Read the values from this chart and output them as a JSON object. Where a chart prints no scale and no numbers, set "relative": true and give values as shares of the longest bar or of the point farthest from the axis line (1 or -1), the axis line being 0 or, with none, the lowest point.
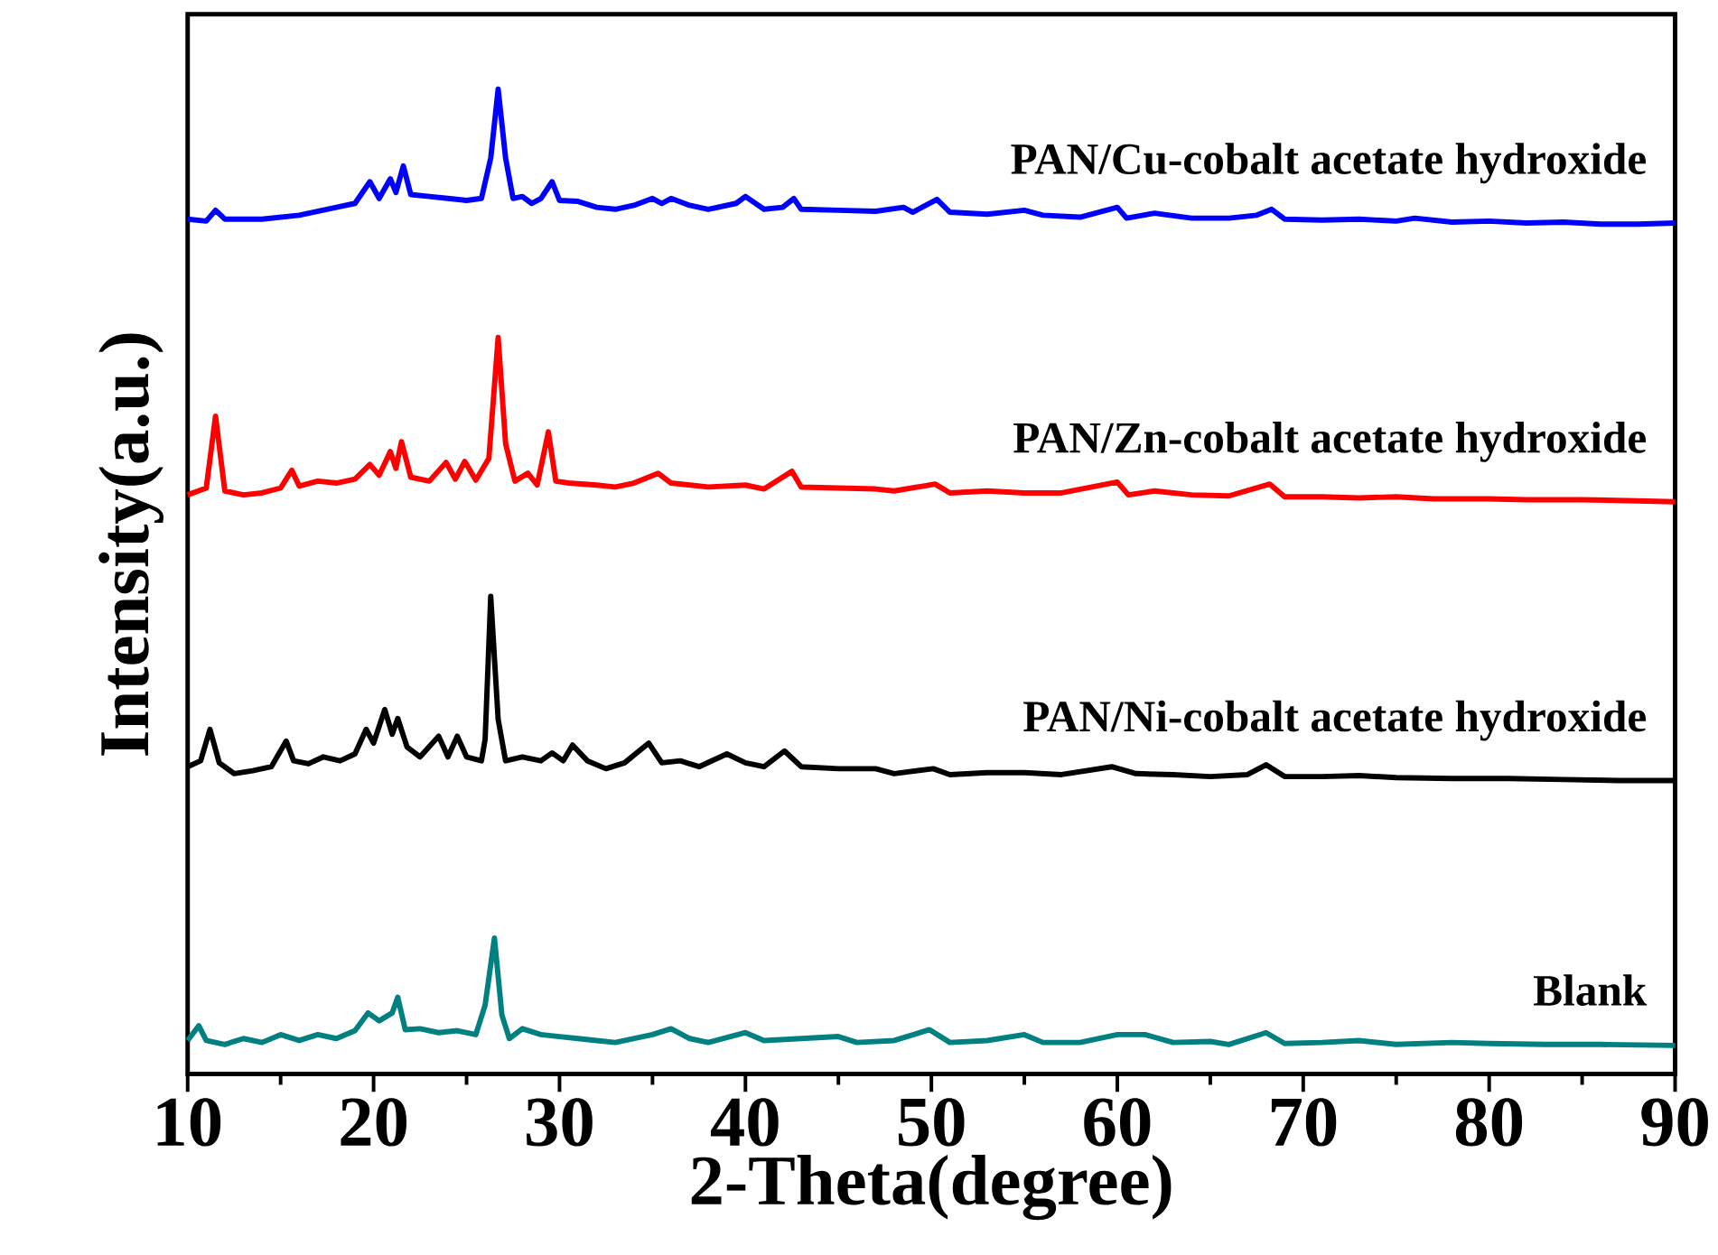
{
  "chart_data": {
    "type": "line",
    "xlabel": "2-Theta(degree)",
    "ylabel": "Intensity(a.u.)",
    "relative": true,
    "xlim": [
      10,
      90
    ],
    "xticks": [
      10,
      {
        "value": 15,
        "label": null
      },
      20,
      {
        "value": 25,
        "label": null
      },
      30,
      {
        "value": 35,
        "label": null
      },
      40,
      {
        "value": 45,
        "label": null
      },
      50,
      {
        "value": 55,
        "label": null
      },
      60,
      {
        "value": 65,
        "label": null
      },
      70,
      {
        "value": 75,
        "label": null
      },
      80,
      {
        "value": 85,
        "label": null
      },
      90
    ],
    "series": [
      {
        "name": "PAN/Cu-cobalt acetate hydroxide",
        "color": "#0000ff",
        "x": [
          10,
          11,
          11.5,
          12,
          14,
          16,
          18,
          19,
          19.8,
          20.3,
          20.9,
          21.2,
          21.6,
          22,
          23,
          24,
          25,
          25.8,
          26.3,
          26.7,
          27.1,
          27.5,
          28,
          28.5,
          29,
          29.6,
          30,
          31,
          32,
          33,
          34,
          35,
          35.5,
          36,
          37,
          38,
          39.5,
          40,
          41,
          42,
          42.6,
          43,
          45,
          47,
          48.5,
          49,
          50.3,
          51,
          53,
          55,
          56,
          58,
          60,
          60.5,
          62,
          64,
          66,
          67.5,
          68.3,
          69,
          71,
          73,
          75,
          76,
          78,
          80,
          82,
          84,
          86,
          88,
          90
        ],
        "values": [
          0.868,
          0.866,
          0.877,
          0.868,
          0.868,
          0.872,
          0.88,
          0.884,
          0.906,
          0.889,
          0.909,
          0.895,
          0.922,
          0.893,
          0.891,
          0.889,
          0.887,
          0.889,
          0.93,
          1.0,
          0.93,
          0.889,
          0.891,
          0.884,
          0.889,
          0.906,
          0.887,
          0.886,
          0.88,
          0.878,
          0.882,
          0.889,
          0.884,
          0.889,
          0.882,
          0.878,
          0.884,
          0.891,
          0.878,
          0.88,
          0.889,
          0.878,
          0.877,
          0.876,
          0.88,
          0.875,
          0.888,
          0.875,
          0.873,
          0.877,
          0.872,
          0.87,
          0.88,
          0.869,
          0.874,
          0.869,
          0.869,
          0.872,
          0.878,
          0.868,
          0.867,
          0.868,
          0.866,
          0.869,
          0.865,
          0.866,
          0.864,
          0.865,
          0.863,
          0.863,
          0.864
        ]
      },
      {
        "name": "PAN/Zn-cobalt acetate hydroxide",
        "color": "#ff0000",
        "x": [
          10,
          11,
          11.5,
          12,
          13,
          14,
          15,
          15.6,
          16,
          17,
          18,
          19,
          19.8,
          20.3,
          20.9,
          21.2,
          21.5,
          22,
          23,
          23.9,
          24.4,
          24.9,
          25.5,
          26.2,
          26.7,
          27.1,
          27.6,
          28.3,
          28.8,
          29.4,
          29.8,
          30.5,
          32,
          33,
          34,
          35.3,
          36,
          38,
          40,
          41,
          42.5,
          43,
          45,
          47,
          48,
          50.2,
          51,
          53,
          55,
          57,
          60,
          60.6,
          62,
          64,
          66,
          68.2,
          69,
          71,
          73,
          75,
          77,
          80,
          82,
          85,
          88,
          90
        ],
        "values": [
          0.588,
          0.595,
          0.668,
          0.592,
          0.588,
          0.59,
          0.595,
          0.613,
          0.597,
          0.602,
          0.6,
          0.604,
          0.619,
          0.608,
          0.632,
          0.615,
          0.642,
          0.606,
          0.602,
          0.621,
          0.604,
          0.622,
          0.603,
          0.625,
          0.748,
          0.64,
          0.602,
          0.61,
          0.598,
          0.652,
          0.602,
          0.6,
          0.598,
          0.596,
          0.6,
          0.61,
          0.6,
          0.596,
          0.598,
          0.594,
          0.612,
          0.596,
          0.595,
          0.594,
          0.592,
          0.599,
          0.59,
          0.592,
          0.59,
          0.59,
          0.601,
          0.588,
          0.592,
          0.588,
          0.587,
          0.599,
          0.586,
          0.586,
          0.585,
          0.586,
          0.584,
          0.584,
          0.583,
          0.583,
          0.582,
          0.581
        ]
      },
      {
        "name": "PAN/Ni-cobalt acetate hydroxide",
        "color": "#000000",
        "x": [
          10,
          10.7,
          11.2,
          11.7,
          12.5,
          13.5,
          14.5,
          15.3,
          15.7,
          16.5,
          17.3,
          18.2,
          19,
          19.6,
          20,
          20.6,
          21,
          21.3,
          21.8,
          22.5,
          23.5,
          24,
          24.5,
          25,
          25.8,
          26,
          26.3,
          26.7,
          27.1,
          28,
          29,
          29.6,
          30.2,
          30.7,
          31.5,
          32.5,
          33.5,
          34.8,
          35.5,
          36.5,
          37.5,
          39,
          40,
          41,
          42.1,
          43,
          45,
          47,
          48,
          50.1,
          51,
          53,
          55,
          57,
          59.7,
          61,
          63,
          65,
          67,
          68,
          69,
          71,
          73,
          75,
          78,
          81,
          84,
          87,
          90
        ],
        "values": [
          0.312,
          0.318,
          0.35,
          0.316,
          0.305,
          0.308,
          0.312,
          0.338,
          0.318,
          0.315,
          0.322,
          0.318,
          0.325,
          0.35,
          0.336,
          0.37,
          0.345,
          0.361,
          0.332,
          0.322,
          0.343,
          0.322,
          0.343,
          0.322,
          0.318,
          0.34,
          0.485,
          0.36,
          0.318,
          0.322,
          0.318,
          0.326,
          0.318,
          0.334,
          0.318,
          0.31,
          0.316,
          0.336,
          0.316,
          0.318,
          0.312,
          0.325,
          0.316,
          0.312,
          0.328,
          0.312,
          0.31,
          0.31,
          0.305,
          0.31,
          0.304,
          0.306,
          0.306,
          0.304,
          0.312,
          0.305,
          0.304,
          0.302,
          0.304,
          0.314,
          0.302,
          0.302,
          0.303,
          0.301,
          0.3,
          0.3,
          0.299,
          0.298,
          0.298
        ]
      },
      {
        "name": "Blank",
        "color": "#008080",
        "x": [
          10,
          10.6,
          11,
          12,
          13,
          14,
          15,
          16,
          17,
          18,
          19,
          19.7,
          20.3,
          21,
          21.3,
          21.7,
          22.5,
          23.5,
          24.5,
          25.5,
          26,
          26.5,
          26.9,
          27.3,
          28,
          29,
          30,
          31,
          32,
          33,
          35,
          36,
          37,
          38,
          40,
          41,
          43,
          45,
          46,
          48,
          49.9,
          51,
          53,
          55,
          56,
          58,
          60,
          61.5,
          63,
          65,
          66,
          68,
          69,
          71,
          73,
          75,
          78,
          80,
          83,
          86,
          90
        ],
        "values": [
          0.034,
          0.049,
          0.034,
          0.03,
          0.036,
          0.032,
          0.04,
          0.034,
          0.04,
          0.036,
          0.044,
          0.062,
          0.054,
          0.062,
          0.078,
          0.045,
          0.046,
          0.042,
          0.044,
          0.04,
          0.07,
          0.138,
          0.06,
          0.036,
          0.046,
          0.04,
          0.038,
          0.036,
          0.034,
          0.032,
          0.04,
          0.046,
          0.036,
          0.032,
          0.042,
          0.034,
          0.036,
          0.038,
          0.032,
          0.034,
          0.045,
          0.032,
          0.034,
          0.04,
          0.032,
          0.032,
          0.04,
          0.04,
          0.032,
          0.033,
          0.03,
          0.042,
          0.031,
          0.032,
          0.034,
          0.03,
          0.032,
          0.031,
          0.03,
          0.03,
          0.029
        ]
      }
    ]
  }
}
